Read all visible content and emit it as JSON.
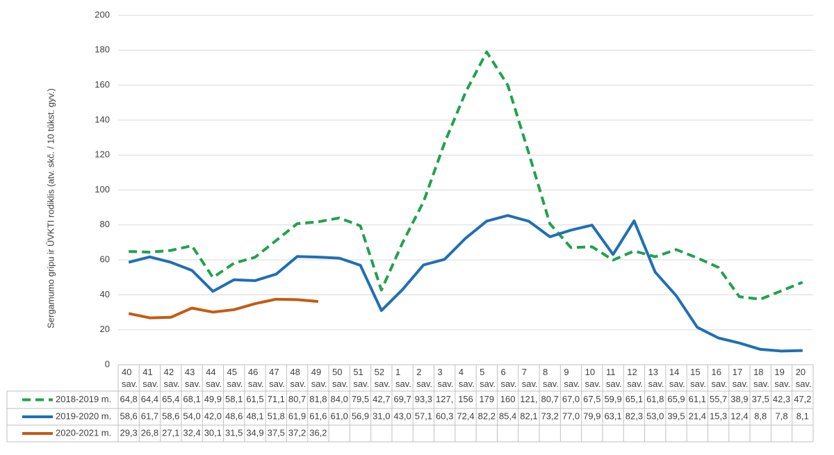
{
  "chart_data": {
    "type": "line",
    "y_label": "Sergamumo gripu ir ŪVKTI rodiklis (atv. skč. / 10 tūkst. gyv.)",
    "categories": [
      "40\nsav.",
      "41\nsav.",
      "42\nsav.",
      "43\nsav.",
      "44\nsav.",
      "45\nsav.",
      "46\nsav.",
      "47\nsav.",
      "48\nsav.",
      "49\nsav.",
      "50\nsav.",
      "51\nsav.",
      "52\nsav.",
      "1\nsav.",
      "2\nsav.",
      "3\nsav.",
      "4\nsav.",
      "5\nsav.",
      "6\nsav.",
      "7\nsav.",
      "8\nsav.",
      "9\nsav.",
      "10\nsav.",
      "11\nsav.",
      "12\nsav.",
      "13\nsav.",
      "14\nsav.",
      "15\nsav.",
      "16\nsav.",
      "17\nsav.",
      "18\nsav.",
      "19\nsav.",
      "20\nsav."
    ],
    "series": [
      {
        "name": "2018-2019 m.",
        "color": "#21a24c",
        "dashed": true,
        "values": [
          64.8,
          64.4,
          65.4,
          68.1,
          49.9,
          58.1,
          61.5,
          71.1,
          80.7,
          81.8,
          84.0,
          79.5,
          42.7,
          69.7,
          93.3,
          127,
          156,
          179,
          160,
          121,
          80.7,
          67.0,
          67.5,
          59.9,
          65.1,
          61.8,
          65.9,
          61.1,
          55.7,
          38.9,
          37.5,
          42.3,
          47.2
        ],
        "value_labels": [
          "64,8",
          "64,4",
          "65,4",
          "68,1",
          "49,9",
          "58,1",
          "61,5",
          "71,1",
          "80,7",
          "81,8",
          "84,0",
          "79,5",
          "42,7",
          "69,7",
          "93,3",
          "127,",
          "156",
          "179",
          "160",
          "121,",
          "80,7",
          "67,0",
          "67,5",
          "59,9",
          "65,1",
          "61,8",
          "65,9",
          "61,1",
          "55,7",
          "38,9",
          "37,5",
          "42,3",
          "47,2"
        ]
      },
      {
        "name": "2019-2020 m.",
        "color": "#1f6fb5",
        "dashed": false,
        "values": [
          58.6,
          61.7,
          58.6,
          54.0,
          42.0,
          48.6,
          48.1,
          51.8,
          61.9,
          61.6,
          61.0,
          56.9,
          31.0,
          43.0,
          57.1,
          60.3,
          72.4,
          82.2,
          85.4,
          82.1,
          73.2,
          77.0,
          79.9,
          63.1,
          82.3,
          53.0,
          39.5,
          21.4,
          15.3,
          12.4,
          8.8,
          7.8,
          8.1
        ],
        "value_labels": [
          "58,6",
          "61,7",
          "58,6",
          "54,0",
          "42,0",
          "48,6",
          "48,1",
          "51,8",
          "61,9",
          "61,6",
          "61,0",
          "56,9",
          "31,0",
          "43,0",
          "57,1",
          "60,3",
          "72,4",
          "82,2",
          "85,4",
          "82,1",
          "73,2",
          "77,0",
          "79,9",
          "63,1",
          "82,3",
          "53,0",
          "39,5",
          "21,4",
          "15,3",
          "12,4",
          "8,8",
          "7,8",
          "8,1"
        ]
      },
      {
        "name": "2020-2021 m.",
        "color": "#c55a11",
        "dashed": false,
        "values": [
          29.3,
          26.8,
          27.1,
          32.4,
          30.1,
          31.5,
          34.9,
          37.5,
          37.2,
          36.2,
          null,
          null,
          null,
          null,
          null,
          null,
          null,
          null,
          null,
          null,
          null,
          null,
          null,
          null,
          null,
          null,
          null,
          null,
          null,
          null,
          null,
          null,
          null
        ],
        "value_labels": [
          "29,3",
          "26,8",
          "27,1",
          "32,4",
          "30,1",
          "31,5",
          "34,9",
          "37,5",
          "37,2",
          "36,2",
          null,
          null,
          null,
          null,
          null,
          null,
          null,
          null,
          null,
          null,
          null,
          null,
          null,
          null,
          null,
          null,
          null,
          null,
          null,
          null,
          null,
          null,
          null
        ]
      }
    ],
    "ylim": [
      0,
      200
    ],
    "yticks": [
      0,
      20,
      40,
      60,
      80,
      100,
      120,
      140,
      160,
      180,
      200
    ],
    "grid": true
  }
}
